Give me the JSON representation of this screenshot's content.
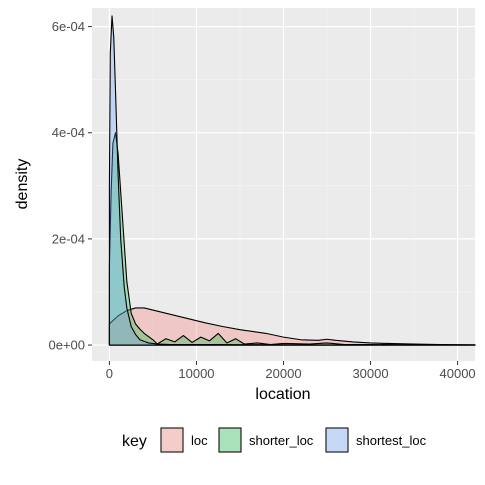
{
  "chart_data": {
    "type": "area",
    "xlabel": "location",
    "ylabel": "density",
    "xlim": [
      -2000,
      42000
    ],
    "ylim": [
      -3e-05,
      0.000635
    ],
    "x_ticks": [
      0,
      10000,
      20000,
      30000,
      40000
    ],
    "x_tick_labels": [
      "0",
      "10000",
      "20000",
      "30000",
      "40000"
    ],
    "y_ticks": [
      0,
      0.0002,
      0.0004,
      0.0006
    ],
    "y_tick_labels": [
      "0e+00",
      "2e-04",
      "4e-04",
      "6e-04"
    ],
    "grid": true,
    "legend": {
      "title": "key",
      "position": "bottom",
      "entries": [
        "loc",
        "shorter_loc",
        "shortest_loc"
      ]
    },
    "series": [
      {
        "name": "loc",
        "color": "#F8766D",
        "x": [
          0,
          1000,
          2000,
          3000,
          4000,
          5000,
          7000,
          9000,
          11000,
          13000,
          15000,
          18000,
          20000,
          22000,
          24000,
          25000,
          26000,
          28000,
          30000,
          32000,
          35000,
          38000,
          42000
        ],
        "y": [
          4e-05,
          5.5e-05,
          6.5e-05,
          7e-05,
          7e-05,
          6.6e-05,
          5.8e-05,
          5e-05,
          4.2e-05,
          3.5e-05,
          2.9e-05,
          2.2e-05,
          1.5e-05,
          1e-05,
          9e-06,
          1.1e-05,
          9e-06,
          6e-06,
          4e-06,
          3e-06,
          2e-06,
          1e-06,
          5e-07
        ]
      },
      {
        "name": "shorter_loc",
        "color": "#00BA38",
        "x": [
          0,
          200,
          400,
          700,
          1000,
          1500,
          2000,
          2500,
          3000,
          3500,
          4000,
          5000,
          5500,
          6500,
          7500,
          8500,
          9500,
          10500,
          11500,
          12500,
          13500,
          14500,
          15500,
          17000,
          18500,
          20000,
          23000,
          25000,
          27000,
          30000,
          35000,
          42000
        ],
        "y": [
          0.00015,
          0.00029,
          0.00038,
          0.0004,
          0.00036,
          0.00024,
          0.00012,
          6e-05,
          4e-05,
          3e-05,
          2.2e-05,
          1e-05,
          2e-06,
          1.2e-05,
          6e-06,
          1.8e-05,
          5e-06,
          1.5e-05,
          8e-06,
          2.2e-05,
          4e-06,
          1.2e-05,
          2e-06,
          4e-06,
          1e-06,
          3e-06,
          2e-06,
          4e-06,
          1e-06,
          1e-06,
          5e-07,
          2e-07
        ]
      },
      {
        "name": "shortest_loc",
        "color": "#619CFF",
        "x": [
          0,
          100,
          300,
          500,
          700,
          1000,
          1300,
          1700,
          2000,
          2500,
          3000,
          3500,
          4500,
          5500,
          7000,
          9000,
          12000,
          15000,
          20000,
          25000,
          30000,
          42000
        ],
        "y": [
          0.0003,
          0.00055,
          0.00062,
          0.00058,
          0.00048,
          0.00032,
          0.0002,
          0.00011,
          7e-05,
          3.5e-05,
          2e-05,
          1e-05,
          4e-06,
          2e-06,
          1e-06,
          1e-06,
          1e-06,
          8e-07,
          5e-07,
          4e-07,
          2e-07,
          1e-07
        ]
      }
    ]
  }
}
